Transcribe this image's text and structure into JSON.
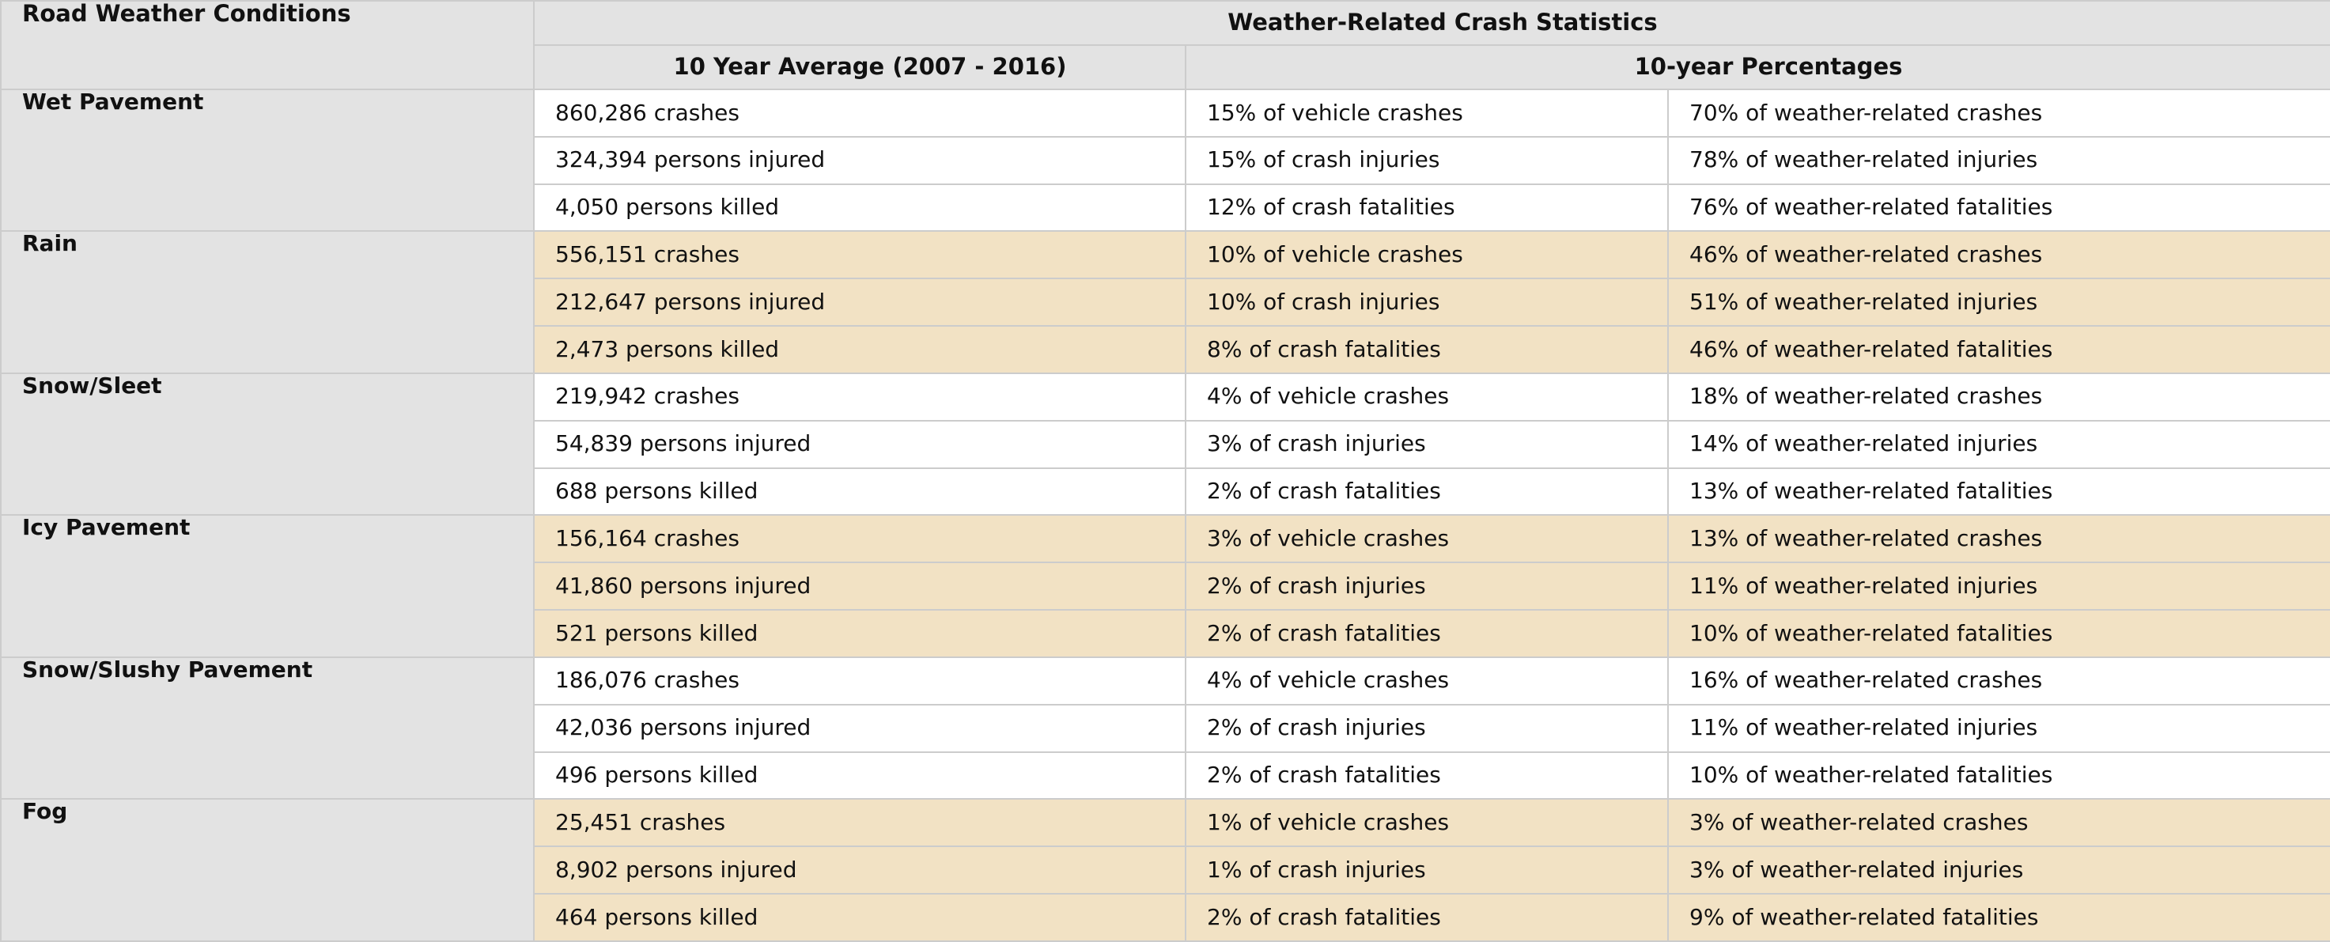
{
  "header": {
    "road_conditions": "Road Weather Conditions",
    "crash_stats": "Weather-Related Crash Statistics",
    "average": "10 Year Average (2007 - 2016)",
    "percentages": "10-year Percentages"
  },
  "colors": {
    "header_bg": "#e3e3e3",
    "band_bg": "#f2e2c4",
    "row_bg": "#ffffff",
    "border": "#cccccc"
  },
  "groups": [
    {
      "condition": "Wet Pavement",
      "rows": [
        {
          "avg": "860,286 crashes",
          "pct_vehicle": "15% of vehicle crashes",
          "pct_weather": "70% of weather-related crashes"
        },
        {
          "avg": "324,394 persons injured",
          "pct_vehicle": "15% of crash injuries",
          "pct_weather": "78% of weather-related injuries"
        },
        {
          "avg": "4,050 persons killed",
          "pct_vehicle": "12% of crash fatalities",
          "pct_weather": "76% of weather-related fatalities"
        }
      ]
    },
    {
      "condition": "Rain",
      "rows": [
        {
          "avg": "556,151 crashes",
          "pct_vehicle": "10% of vehicle crashes",
          "pct_weather": "46% of weather-related crashes"
        },
        {
          "avg": "212,647 persons injured",
          "pct_vehicle": "10% of crash injuries",
          "pct_weather": "51% of weather-related injuries"
        },
        {
          "avg": "2,473 persons killed",
          "pct_vehicle": "8% of crash fatalities",
          "pct_weather": "46% of weather-related fatalities"
        }
      ]
    },
    {
      "condition": "Snow/Sleet",
      "rows": [
        {
          "avg": "219,942 crashes",
          "pct_vehicle": "4% of vehicle crashes",
          "pct_weather": "18% of weather-related crashes"
        },
        {
          "avg": "54,839 persons injured",
          "pct_vehicle": "3% of crash injuries",
          "pct_weather": "14% of weather-related injuries"
        },
        {
          "avg": "688 persons killed",
          "pct_vehicle": "2% of crash fatalities",
          "pct_weather": "13% of weather-related fatalities"
        }
      ]
    },
    {
      "condition": "Icy Pavement",
      "rows": [
        {
          "avg": "156,164 crashes",
          "pct_vehicle": "3% of vehicle crashes",
          "pct_weather": "13% of weather-related crashes"
        },
        {
          "avg": "41,860 persons injured",
          "pct_vehicle": "2% of crash injuries",
          "pct_weather": "11% of weather-related injuries"
        },
        {
          "avg": "521 persons killed",
          "pct_vehicle": "2% of crash fatalities",
          "pct_weather": "10% of weather-related fatalities"
        }
      ]
    },
    {
      "condition": "Snow/Slushy Pavement",
      "rows": [
        {
          "avg": "186,076 crashes",
          "pct_vehicle": "4% of vehicle crashes",
          "pct_weather": "16% of weather-related crashes"
        },
        {
          "avg": "42,036 persons injured",
          "pct_vehicle": "2% of crash injuries",
          "pct_weather": "11% of weather-related injuries"
        },
        {
          "avg": "496 persons killed",
          "pct_vehicle": "2% of crash fatalities",
          "pct_weather": "10% of weather-related fatalities"
        }
      ]
    },
    {
      "condition": "Fog",
      "rows": [
        {
          "avg": "25,451 crashes",
          "pct_vehicle": "1% of vehicle crashes",
          "pct_weather": "3% of weather-related crashes"
        },
        {
          "avg": "8,902 persons injured",
          "pct_vehicle": "1% of crash injuries",
          "pct_weather": "3% of weather-related injuries"
        },
        {
          "avg": "464 persons killed",
          "pct_vehicle": "2% of crash fatalities",
          "pct_weather": "9% of weather-related fatalities"
        }
      ]
    }
  ]
}
